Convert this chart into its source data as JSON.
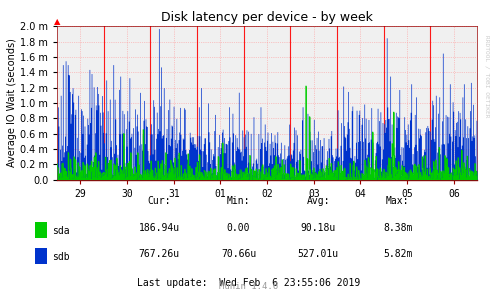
{
  "title": "Disk latency per device - by week",
  "ylabel": "Average IO Wait (seconds)",
  "background_color": "#FFFFFF",
  "plot_bg_color": "#F0F0F0",
  "grid_color": "#FF9999",
  "vline_color": "#FF0000",
  "sda_color": "#00CC00",
  "sdb_color": "#0033CC",
  "axis_color": "#990000",
  "x_tick_labels": [
    "29",
    "30",
    "31",
    "01",
    "02",
    "03",
    "04",
    "05",
    "06"
  ],
  "ytick_values": [
    0.0,
    0.2,
    0.4,
    0.6,
    0.8,
    1.0,
    1.2,
    1.4,
    1.6,
    1.8,
    2.0
  ],
  "stats_headers": [
    "Cur:",
    "Min:",
    "Avg:",
    "Max:"
  ],
  "stats_sda": [
    "186.94u",
    "0.00",
    "90.18u",
    "8.38m"
  ],
  "stats_sdb": [
    "767.26u",
    "70.66u",
    "527.01u",
    "5.82m"
  ],
  "last_update": "Last update:  Wed Feb  6 23:55:06 2019",
  "watermark": "RRDTOOL / TOBI OETIKER",
  "footer": "Munin 1.4.6",
  "num_points": 600,
  "xlim": [
    0,
    9
  ],
  "ylim": [
    0,
    2.0
  ]
}
